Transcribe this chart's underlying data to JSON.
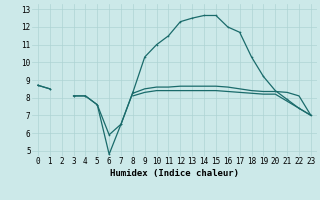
{
  "x": [
    0,
    1,
    2,
    3,
    4,
    5,
    6,
    7,
    8,
    9,
    10,
    11,
    12,
    13,
    14,
    15,
    16,
    17,
    18,
    19,
    20,
    21,
    22,
    23
  ],
  "line1": [
    8.7,
    8.5,
    null,
    8.1,
    8.1,
    7.6,
    5.9,
    6.5,
    8.3,
    10.3,
    11.0,
    11.5,
    12.3,
    12.5,
    12.65,
    12.65,
    12.0,
    11.7,
    10.3,
    9.2,
    8.4,
    7.9,
    7.4,
    7.0
  ],
  "line2": [
    8.7,
    8.5,
    null,
    8.1,
    8.1,
    7.6,
    4.8,
    6.5,
    8.3,
    null,
    null,
    null,
    null,
    null,
    null,
    null,
    null,
    null,
    null,
    null,
    null,
    null,
    null,
    null
  ],
  "line3": [
    8.65,
    null,
    null,
    8.1,
    null,
    null,
    null,
    null,
    8.25,
    8.5,
    8.6,
    8.6,
    8.65,
    8.65,
    8.65,
    8.65,
    8.6,
    8.5,
    8.4,
    8.35,
    8.35,
    8.3,
    8.1,
    7.0
  ],
  "line4": [
    8.65,
    null,
    null,
    8.1,
    null,
    null,
    null,
    null,
    8.1,
    8.3,
    8.4,
    8.4,
    8.4,
    8.4,
    8.4,
    8.4,
    8.35,
    8.3,
    8.25,
    8.2,
    8.2,
    7.8,
    7.4,
    7.0
  ],
  "bg_color": "#cce9e9",
  "grid_color": "#aed4d4",
  "line_color": "#1a6b6b",
  "xlabel": "Humidex (Indice chaleur)",
  "ylim": [
    4.7,
    13.3
  ],
  "xlim": [
    -0.5,
    23.5
  ],
  "yticks": [
    5,
    6,
    7,
    8,
    9,
    10,
    11,
    12,
    13
  ],
  "xticks": [
    0,
    1,
    2,
    3,
    4,
    5,
    6,
    7,
    8,
    9,
    10,
    11,
    12,
    13,
    14,
    15,
    16,
    17,
    18,
    19,
    20,
    21,
    22,
    23
  ],
  "xlabel_fontsize": 6.5,
  "tick_fontsize": 5.5
}
